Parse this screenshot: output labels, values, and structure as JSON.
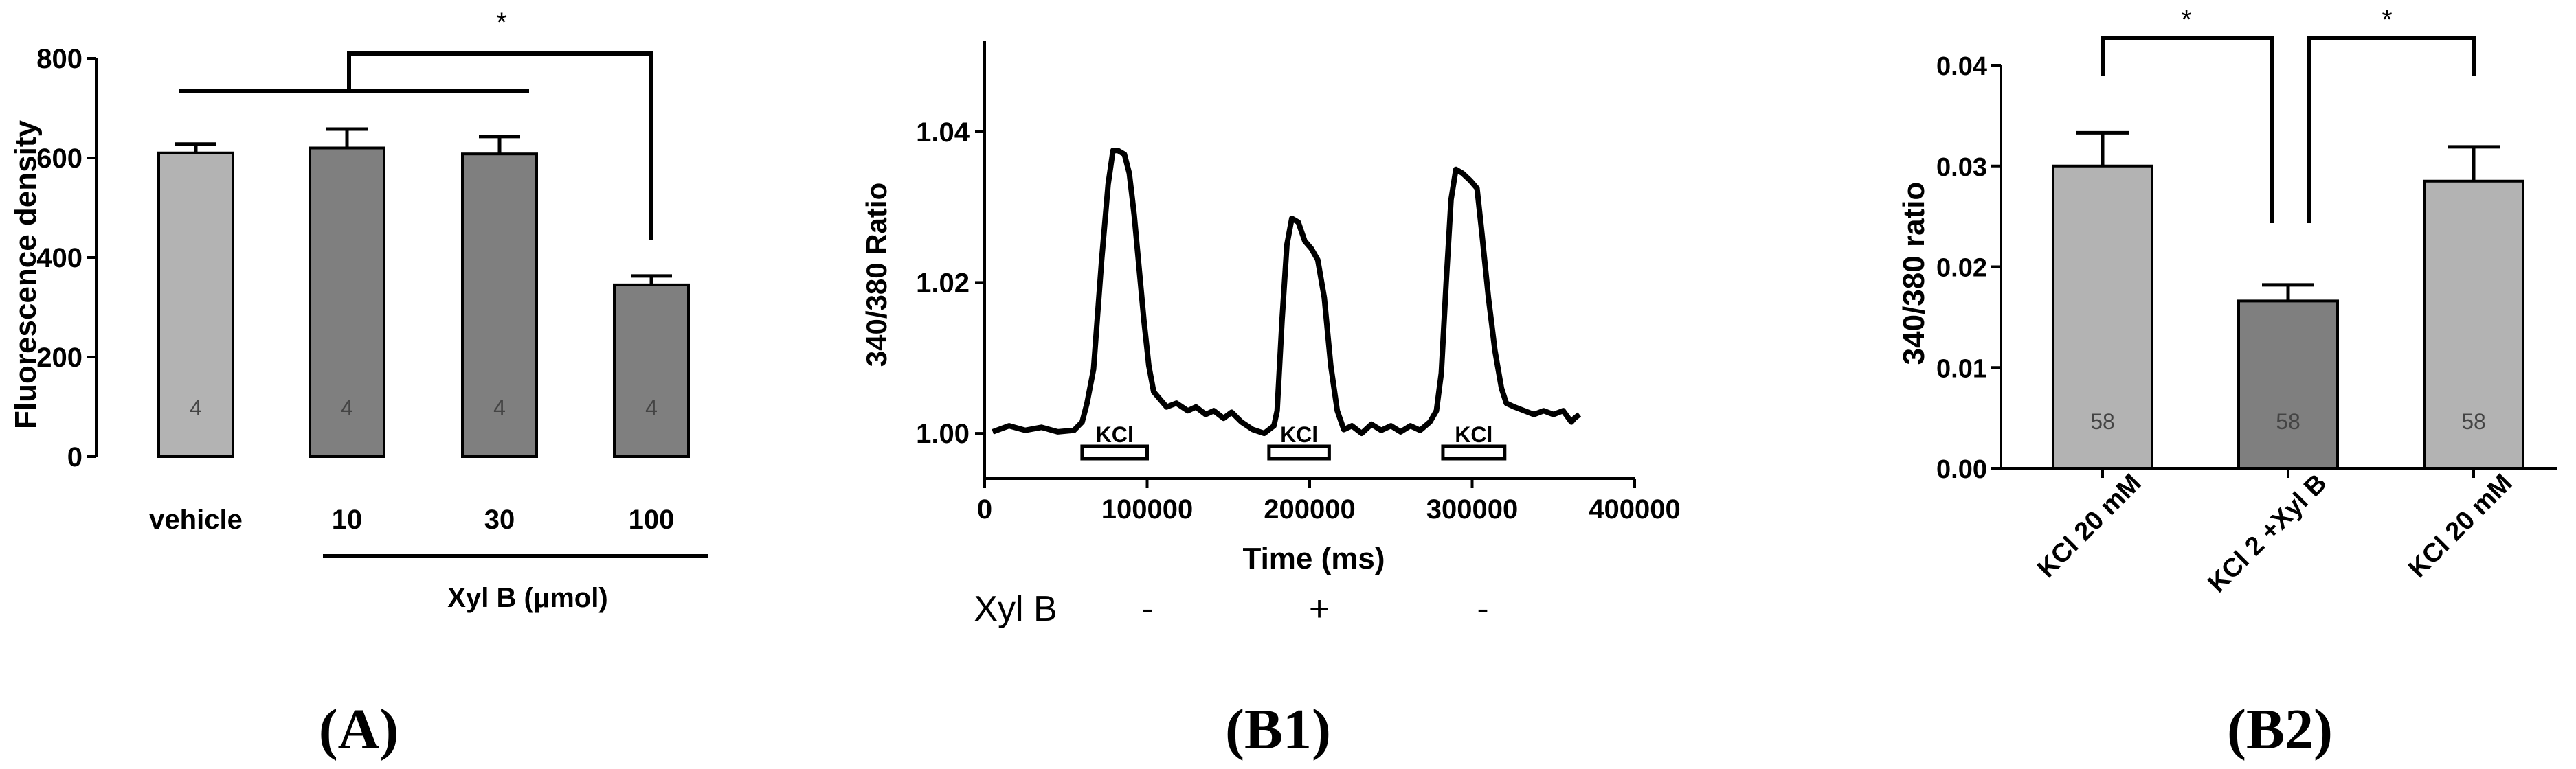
{
  "colors": {
    "light_bar": "#b3b3b3",
    "dark_bar": "#7f7f7f",
    "ink": "#000000",
    "n_label": "#444444"
  },
  "chart_data": [
    {
      "panel": "A",
      "type": "bar",
      "panel_label": "(A)",
      "ylabel": "Fluorescence density",
      "ylim": [
        0,
        800
      ],
      "yticks": [
        0,
        200,
        400,
        600,
        800
      ],
      "categories": [
        "vehicle",
        "10",
        "30",
        "100"
      ],
      "values": [
        610,
        620,
        608,
        345
      ],
      "errors": [
        18,
        38,
        35,
        18
      ],
      "n_labels": [
        "4",
        "4",
        "4",
        "4"
      ],
      "bar_colors": [
        "#b3b3b3",
        "#7f7f7f",
        "#7f7f7f",
        "#7f7f7f"
      ],
      "group_label": "Xyl B (μmol)",
      "significance": "*"
    },
    {
      "panel": "B1",
      "type": "line",
      "panel_label": "(B1)",
      "xlabel": "Time (ms)",
      "ylabel": "340/380 Ratio",
      "xlim": [
        0,
        400000
      ],
      "ylim": [
        0.994,
        1.052
      ],
      "xticks": [
        0,
        100000,
        200000,
        300000,
        400000
      ],
      "yticks": [
        1.0,
        1.02,
        1.04
      ],
      "ytick_labels": [
        "1.00",
        "1.02",
        "1.04"
      ],
      "x": [
        5000,
        15000,
        25000,
        35000,
        45000,
        55000,
        60000,
        63000,
        67000,
        72000,
        76000,
        79000,
        82000,
        86000,
        89000,
        92000,
        95000,
        98000,
        101000,
        104000,
        108000,
        112000,
        118000,
        125000,
        130000,
        136000,
        141000,
        147000,
        152000,
        158000,
        165000,
        172000,
        178000,
        180000,
        183000,
        186000,
        189000,
        193000,
        197000,
        201000,
        205000,
        209000,
        213000,
        217000,
        221000,
        226000,
        232000,
        238000,
        244000,
        250000,
        256000,
        262000,
        268000,
        274000,
        278000,
        281000,
        284000,
        287000,
        290000,
        294000,
        299000,
        303000,
        306000,
        310000,
        314000,
        318000,
        321000,
        326000,
        332000,
        338000,
        344000,
        350000,
        356000,
        361000,
        363000,
        366000
      ],
      "y": [
        1.0002,
        1.001,
        1.0004,
        1.0008,
        1.0002,
        1.0004,
        1.0015,
        1.004,
        1.0085,
        1.023,
        1.033,
        1.0375,
        1.0375,
        1.037,
        1.0345,
        1.029,
        1.022,
        1.015,
        1.009,
        1.0055,
        1.0045,
        1.0035,
        1.004,
        1.003,
        1.0035,
        1.0025,
        1.003,
        1.002,
        1.0028,
        1.0015,
        1.0005,
        1.0,
        1.001,
        1.003,
        1.015,
        1.025,
        1.0285,
        1.028,
        1.0255,
        1.0245,
        1.023,
        1.018,
        1.009,
        1.003,
        1.0005,
        1.001,
        1.0,
        1.0012,
        1.0004,
        1.001,
        1.0002,
        1.001,
        1.0004,
        1.0015,
        1.003,
        1.008,
        1.02,
        1.031,
        1.035,
        1.0345,
        1.0335,
        1.0325,
        1.0265,
        1.018,
        1.011,
        1.006,
        1.004,
        1.0035,
        1.003,
        1.0025,
        1.003,
        1.0025,
        1.003,
        1.0015,
        1.002,
        1.0025
      ],
      "stimuli": [
        {
          "label": "KCl",
          "start": 60000,
          "end": 100000
        },
        {
          "label": "KCl",
          "start": 175000,
          "end": 212000
        },
        {
          "label": "KCl",
          "start": 282000,
          "end": 320000
        }
      ],
      "condition_label": "Xyl B",
      "conditions": [
        "-",
        "+",
        "-"
      ]
    },
    {
      "panel": "B2",
      "type": "bar",
      "panel_label": "(B2)",
      "ylabel": "340/380 ratio",
      "ylim": [
        0,
        0.04
      ],
      "yticks": [
        0,
        0.01,
        0.02,
        0.03,
        0.04
      ],
      "ytick_labels": [
        "0.00",
        "0.01",
        "0.02",
        "0.03",
        "0.04"
      ],
      "categories": [
        "KCl 20 mM",
        "KCl 2 +Xyl B",
        "KCl 20 mM"
      ],
      "values": [
        0.03,
        0.0166,
        0.0285
      ],
      "errors": [
        0.0033,
        0.0016,
        0.0034
      ],
      "n_labels": [
        "58",
        "58",
        "58"
      ],
      "bar_colors": [
        "#b3b3b3",
        "#7f7f7f",
        "#b3b3b3"
      ],
      "significance": [
        "*",
        "*"
      ]
    }
  ]
}
